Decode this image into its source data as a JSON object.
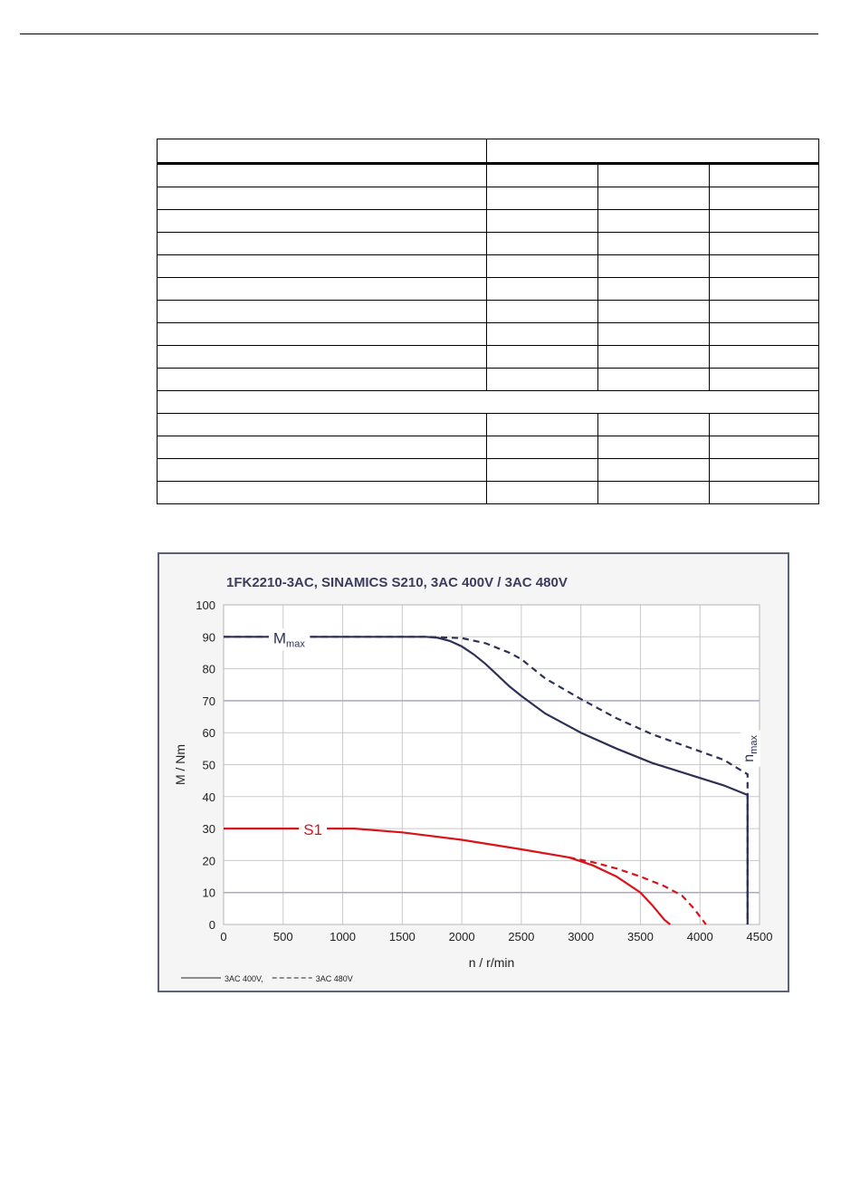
{
  "chart_data": {
    "type": "line",
    "title": "1FK2210-3AC,  SINAMICS S210,  3AC 400V / 3AC 480V",
    "xlabel": "n / r/min",
    "ylabel": "M / Nm",
    "xlim": [
      0,
      4500
    ],
    "ylim": [
      0,
      100
    ],
    "xticks": [
      0,
      500,
      1000,
      1500,
      2000,
      2500,
      3000,
      3500,
      4000,
      4500
    ],
    "yticks": [
      0,
      10,
      20,
      30,
      40,
      50,
      60,
      70,
      80,
      90,
      100
    ],
    "grid": true,
    "legend": "bottom-left",
    "legend_items": [
      {
        "label": "3AC 400V,",
        "style": "solid"
      },
      {
        "label": "3AC 480V",
        "style": "dashed"
      }
    ],
    "annotations": [
      {
        "text": "M",
        "sub": "max",
        "x": 550,
        "y": 90,
        "color": "#2e3157"
      },
      {
        "text": "S1",
        "x": 750,
        "y": 30,
        "color": "#d9131a"
      },
      {
        "text": "n",
        "sub": "max",
        "x": 4400,
        "y": 55,
        "color": "#2e3157",
        "rotated": true
      }
    ],
    "series": [
      {
        "style": "solid",
        "color": "#2e3157",
        "x": [
          0,
          1700,
          1800,
          1900,
          2000,
          2100,
          2200,
          2300,
          2400,
          2500,
          2700,
          3000,
          3300,
          3600,
          3900,
          4200,
          4400,
          4400
        ],
        "y": [
          90,
          90,
          89.7,
          88.7,
          87,
          84.5,
          81.5,
          78,
          74.5,
          71.5,
          66,
          60,
          55,
          50.5,
          47,
          43.5,
          40.5,
          0
        ]
      },
      {
        "style": "dashed",
        "color": "#2e3157",
        "x": [
          0,
          1700,
          2000,
          2200,
          2300,
          2400,
          2500,
          2700,
          3000,
          3300,
          3600,
          3900,
          4200,
          4400,
          4400
        ],
        "y": [
          90,
          90,
          89.6,
          88,
          86.5,
          85,
          83,
          77,
          70.5,
          64.5,
          59.5,
          55.5,
          51.5,
          47,
          0
        ]
      },
      {
        "style": "solid",
        "color": "#d9131a",
        "x": [
          0,
          1100,
          1500,
          2000,
          2500,
          2900,
          3100,
          3300,
          3500,
          3600,
          3700,
          3750
        ],
        "y": [
          30,
          30,
          28.8,
          26.5,
          23.5,
          21,
          18.5,
          15,
          10,
          6,
          1.5,
          0
        ]
      },
      {
        "style": "dashed",
        "color": "#d9131a",
        "x": [
          2900,
          3100,
          3300,
          3500,
          3700,
          3850,
          3950,
          4000,
          4050
        ],
        "y": [
          21,
          19.5,
          17.5,
          15,
          12,
          9,
          5,
          2.5,
          0
        ]
      }
    ]
  }
}
